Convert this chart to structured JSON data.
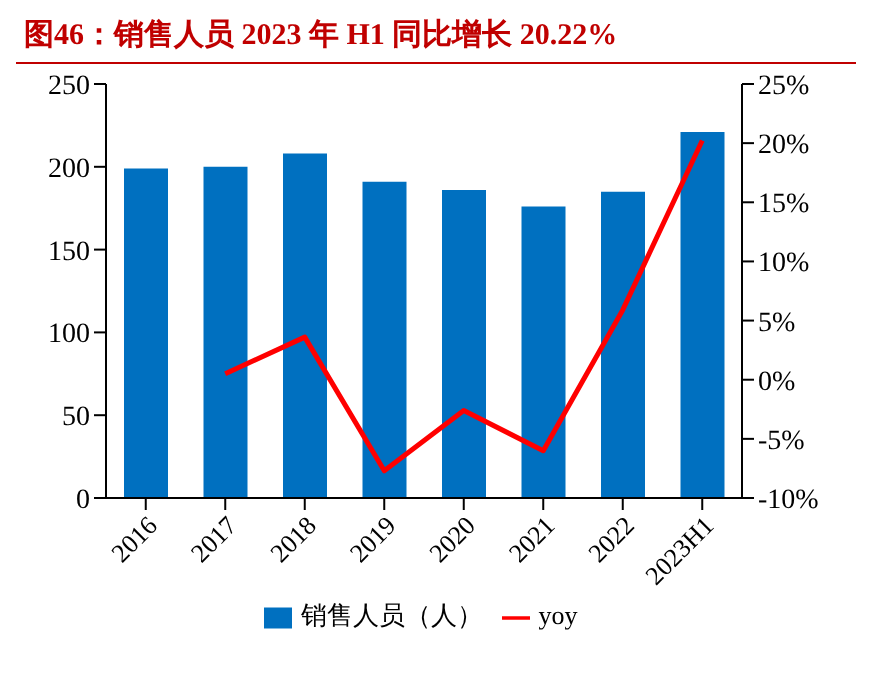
{
  "chart_data": {
    "type": "bar",
    "title": "图46：销售人员 2023 年 H1 同比增长 20.22%",
    "categories": [
      "2016",
      "2017",
      "2018",
      "2019",
      "2020",
      "2021",
      "2022",
      "2023H1"
    ],
    "series": [
      {
        "name": "销售人员（人）",
        "color": "#0070c0",
        "values": [
          199,
          200,
          208,
          191,
          186,
          176,
          185,
          221
        ]
      },
      {
        "name": "yoy",
        "type": "line",
        "axis": "y2",
        "color": "#ff0000",
        "marker": "none",
        "values": [
          null,
          0.5,
          3.6,
          -7.7,
          -2.6,
          -6.0,
          5.9,
          20.22
        ]
      }
    ],
    "ylim": [
      0,
      250
    ],
    "yticks": [
      0,
      50,
      100,
      150,
      200,
      250
    ],
    "y2lim": [
      -10,
      25
    ],
    "y2ticks": [
      {
        "value": -10,
        "label": "-10%"
      },
      {
        "value": -5,
        "label": "-5%"
      },
      {
        "value": 0,
        "label": "0%"
      },
      {
        "value": 5,
        "label": "5%"
      },
      {
        "value": 10,
        "label": "10%"
      },
      {
        "value": 15,
        "label": "15%"
      },
      {
        "value": 20,
        "label": "20%"
      },
      {
        "value": 25,
        "label": "25%"
      }
    ],
    "grid": false,
    "legend": "bottom"
  }
}
